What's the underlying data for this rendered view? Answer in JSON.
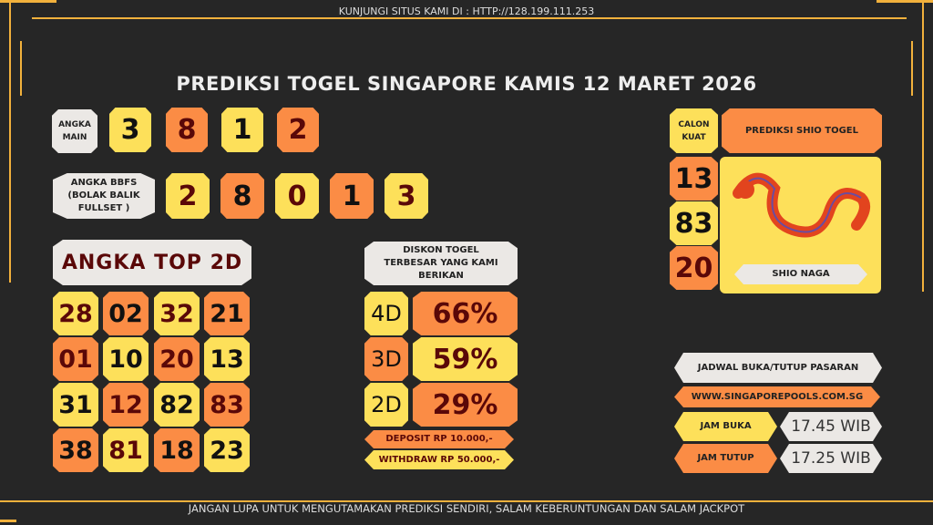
{
  "header": {
    "visit": "KUNJUNGI SITUS KAMI DI : HTTP://128.199.111.253",
    "title": "PREDIKSI TOGEL SINGAPORE KAMIS 12 MARET 2026"
  },
  "angka_main": {
    "label": "ANGKA MAIN",
    "digits": [
      "3",
      "8",
      "1",
      "2"
    ]
  },
  "bbfs": {
    "label": "ANGKA BBFS (BOLAK BALIK FULLSET )",
    "digits": [
      "2",
      "8",
      "0",
      "1",
      "3"
    ]
  },
  "top2d": {
    "label": "ANGKA TOP 2D",
    "numbers": [
      "28",
      "02",
      "32",
      "21",
      "01",
      "10",
      "20",
      "13",
      "31",
      "12",
      "82",
      "83",
      "38",
      "81",
      "18",
      "23"
    ]
  },
  "diskon": {
    "label": "DISKON TOGEL TERBESAR YANG KAMI BERIKAN",
    "rows": [
      {
        "type": "4D",
        "value": "66%"
      },
      {
        "type": "3D",
        "value": "59%"
      },
      {
        "type": "2D",
        "value": "29%"
      }
    ],
    "deposit": "DEPOSIT RP 10.000,-",
    "withdraw": "WITHDRAW RP 50.000,-"
  },
  "shio": {
    "calon_label": "CALON KUAT",
    "title": "PREDIKSI SHIO TOGEL",
    "numbers": [
      "13",
      "83",
      "20"
    ],
    "name": "SHIO NAGA"
  },
  "jadwal": {
    "title": "JADWAL BUKA/TUTUP PASARAN",
    "url": "WWW.SINGAPOREPOOLS.COM.SG",
    "buka_label": "JAM BUKA",
    "buka": "17.45 WIB",
    "tutup_label": "JAM TUTUP",
    "tutup": "17.25 WIB"
  },
  "footer": "JANGAN LUPA UNTUK MENGUTAMAKAN PREDIKSI SENDIRI, SALAM KEBERUNTUNGAN DAN SALAM JACKPOT",
  "colors": {
    "yellow": "#fde05a",
    "orange": "#fb8c45",
    "light": "#ebe8e5",
    "gold": "#f2b13c",
    "background": "#262626"
  }
}
